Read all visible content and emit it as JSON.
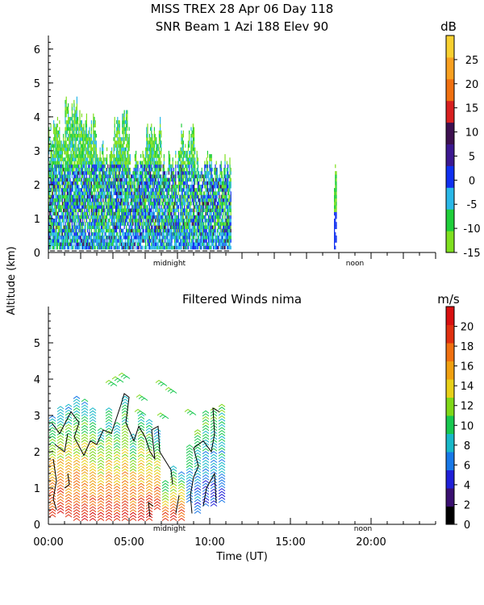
{
  "header": {
    "title_line1": "MISS TREX    28 Apr 06 Day 118",
    "title_line2": "SNR Beam 1 Azi 188 Elev 90"
  },
  "shared": {
    "ylabel": "Altitude (km)",
    "xlabel": "Time (UT)",
    "x_tick_labels": [
      "00:00",
      "05:00",
      "10:00",
      "15:00",
      "20:00"
    ],
    "x_ticks_hours": [
      0,
      5,
      10,
      15,
      20
    ],
    "marker_midnight": "midnight",
    "marker_noon": "noon",
    "marker_midnight_hour": 7.5,
    "marker_noon_hour": 19.5
  },
  "chart_data": [
    {
      "type": "heatmap",
      "title": "",
      "xlabel": "",
      "ylabel": "Altitude (km)",
      "xlim_hours": [
        0,
        24
      ],
      "ylim": [
        0,
        6.4
      ],
      "y_ticks": [
        0,
        1,
        2,
        3,
        4,
        5,
        6
      ],
      "colorbar_unit": "dB",
      "colorbar_range": [
        -15,
        30
      ],
      "colorbar_ticks": [
        -15,
        -10,
        -5,
        0,
        5,
        10,
        15,
        20,
        25
      ],
      "colorbar_colors": [
        "#7fe01f",
        "#1fcf3a",
        "#2ab8e8",
        "#1030f0",
        "#3c1890",
        "#3e1050",
        "#d82020",
        "#f07010",
        "#f8a020",
        "#f8d030"
      ],
      "data_segments": [
        {
          "start_hour": 0.0,
          "end_hour": 11.3,
          "ceiling_km_by_hour": [
            4.0,
            4.6,
            4.1,
            3.3,
            4.2,
            3.1,
            4.0,
            3.0,
            3.8,
            3.1,
            3.0,
            2.9
          ],
          "strong_echo_km": [
            0.1,
            2.6
          ]
        },
        {
          "start_hour": 17.7,
          "end_hour": 17.85,
          "ceiling_km_by_hour": [
            2.6
          ],
          "strong_echo_km": [
            0.1,
            1.8
          ]
        }
      ]
    },
    {
      "type": "scatter",
      "title": "Filtered Winds nima",
      "xlabel": "Time (UT)",
      "ylabel": "",
      "xlim_hours": [
        0,
        24
      ],
      "ylim": [
        0,
        6
      ],
      "y_ticks": [
        0,
        1,
        2,
        3,
        4,
        5
      ],
      "colorbar_unit": "m/s",
      "colorbar_range": [
        0,
        22
      ],
      "colorbar_ticks": [
        0,
        2,
        4,
        6,
        8,
        10,
        12,
        14,
        16,
        18,
        20
      ],
      "colorbar_colors": [
        "#000000",
        "#3a1070",
        "#2020d8",
        "#1878e8",
        "#18b8c8",
        "#18c850",
        "#80d818",
        "#e8d018",
        "#f0a010",
        "#f07010",
        "#e03010",
        "#d81010"
      ],
      "wind_profiles": [
        {
          "hour": 0.25,
          "bottom_km": 0.2,
          "top_km": 3.0
        },
        {
          "hour": 0.75,
          "bottom_km": 0.3,
          "top_km": 3.2
        },
        {
          "hour": 1.25,
          "bottom_km": 0.2,
          "top_km": 3.3
        },
        {
          "hour": 1.75,
          "bottom_km": 0.1,
          "top_km": 3.5
        },
        {
          "hour": 2.25,
          "bottom_km": 0.1,
          "top_km": 3.4
        },
        {
          "hour": 2.75,
          "bottom_km": 0.1,
          "top_km": 3.2
        },
        {
          "hour": 3.25,
          "bottom_km": 0.1,
          "top_km": 2.6
        },
        {
          "hour": 3.75,
          "bottom_km": 0.1,
          "top_km": 3.2
        },
        {
          "hour": 4.25,
          "bottom_km": 0.1,
          "top_km": 2.8
        },
        {
          "hour": 4.75,
          "bottom_km": 0.1,
          "top_km": 3.5
        },
        {
          "hour": 5.25,
          "bottom_km": 0.1,
          "top_km": 2.5
        },
        {
          "hour": 5.75,
          "bottom_km": 0.1,
          "top_km": 3.0
        },
        {
          "hour": 6.25,
          "bottom_km": 0.1,
          "top_km": 2.9
        },
        {
          "hour": 6.75,
          "bottom_km": 0.4,
          "top_km": 2.6
        },
        {
          "hour": 7.25,
          "bottom_km": 0.1,
          "top_km": 1.2
        },
        {
          "hour": 7.75,
          "bottom_km": 0.1,
          "top_km": 1.6
        },
        {
          "hour": 8.25,
          "bottom_km": 0.1,
          "top_km": 1.4
        },
        {
          "hour": 8.75,
          "bottom_km": 0.6,
          "top_km": 2.2
        },
        {
          "hour": 9.25,
          "bottom_km": 0.3,
          "top_km": 2.6
        },
        {
          "hour": 9.75,
          "bottom_km": 0.5,
          "top_km": 3.1
        },
        {
          "hour": 10.25,
          "bottom_km": 0.5,
          "top_km": 3.2
        },
        {
          "hour": 10.75,
          "bottom_km": 0.6,
          "top_km": 3.3
        }
      ],
      "upper_barbs": [
        {
          "hour": 3.8,
          "km": 3.9
        },
        {
          "hour": 4.2,
          "km": 4.0
        },
        {
          "hour": 4.6,
          "km": 4.1
        },
        {
          "hour": 5.6,
          "km": 3.1
        },
        {
          "hour": 5.7,
          "km": 3.5
        },
        {
          "hour": 6.9,
          "km": 3.9
        },
        {
          "hour": 7.5,
          "km": 3.7
        },
        {
          "hour": 8.7,
          "km": 3.1
        },
        {
          "hour": 7.0,
          "km": 3.0
        }
      ],
      "contour_lines": [
        [
          [
            0.2,
            2.8
          ],
          [
            0.7,
            2.5
          ],
          [
            1.4,
            3.1
          ],
          [
            1.9,
            2.8
          ],
          [
            1.6,
            2.4
          ],
          [
            2.2,
            1.9
          ],
          [
            2.6,
            2.3
          ],
          [
            3.0,
            2.2
          ],
          [
            3.4,
            2.6
          ],
          [
            3.9,
            2.5
          ],
          [
            4.5,
            3.3
          ],
          [
            4.7,
            3.6
          ],
          [
            5.0,
            3.5
          ],
          [
            4.8,
            2.8
          ],
          [
            5.3,
            2.3
          ],
          [
            5.6,
            2.7
          ],
          [
            6.0,
            2.4
          ],
          [
            6.3,
            2.0
          ],
          [
            6.6,
            1.8
          ],
          [
            6.4,
            2.6
          ],
          [
            6.8,
            2.7
          ],
          [
            6.9,
            2.0
          ],
          [
            7.6,
            1.5
          ],
          [
            7.7,
            1.1
          ]
        ],
        [
          [
            0.3,
            1.8
          ],
          [
            0.5,
            1.2
          ],
          [
            0.3,
            0.7
          ],
          [
            0.5,
            0.4
          ]
        ],
        [
          [
            1.2,
            1.4
          ],
          [
            1.3,
            1.1
          ],
          [
            1.0,
            1.0
          ]
        ],
        [
          [
            0.4,
            2.2
          ],
          [
            1.0,
            2.0
          ],
          [
            1.2,
            2.5
          ]
        ],
        [
          [
            8.9,
            0.3
          ],
          [
            8.8,
            0.8
          ],
          [
            9.0,
            1.3
          ],
          [
            9.3,
            1.6
          ],
          [
            9.0,
            2.1
          ],
          [
            9.6,
            2.3
          ],
          [
            10.1,
            2.0
          ],
          [
            10.3,
            2.5
          ],
          [
            10.2,
            3.2
          ],
          [
            10.6,
            3.1
          ]
        ],
        [
          [
            9.6,
            0.5
          ],
          [
            9.8,
            1.0
          ],
          [
            10.3,
            1.4
          ],
          [
            10.4,
            0.6
          ]
        ],
        [
          [
            6.3,
            0.2
          ],
          [
            6.2,
            0.6
          ],
          [
            6.5,
            0.5
          ]
        ],
        [
          [
            7.9,
            0.3
          ],
          [
            8.1,
            0.8
          ]
        ]
      ]
    }
  ]
}
